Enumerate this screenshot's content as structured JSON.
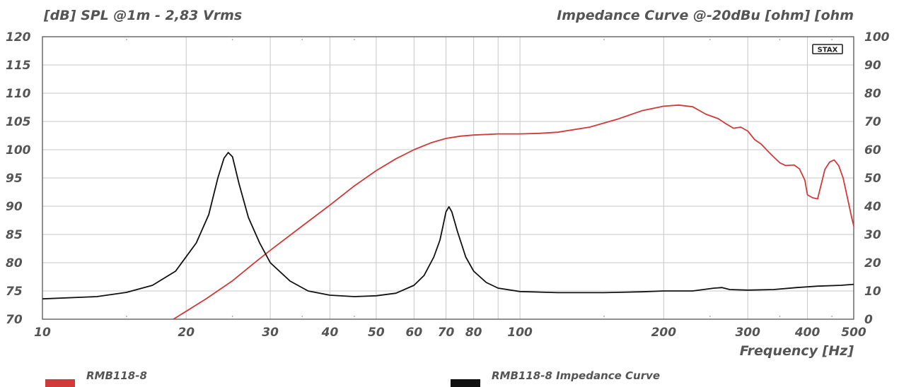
{
  "chart_data": {
    "type": "line",
    "title": "",
    "ylabel": "[dB]  SPL @1m - 2,83 Vrms",
    "y2label": "Impedance Curve @-20dBu [ohm]  [ohm",
    "xlabel": "Frequency  [Hz]",
    "x_scale": "log",
    "xlim": [
      10,
      500
    ],
    "ylim": [
      70,
      120
    ],
    "y2lim": [
      0,
      100
    ],
    "grid": true,
    "legend_position": "bottom",
    "x_ticks": [
      10,
      20,
      30,
      40,
      50,
      60,
      70,
      80,
      100,
      200,
      300,
      400,
      500
    ],
    "y_ticks": [
      70,
      75,
      80,
      85,
      90,
      95,
      100,
      105,
      110,
      115,
      120
    ],
    "y2_ticks": [
      0,
      10,
      20,
      30,
      40,
      50,
      60,
      70,
      80,
      90,
      100
    ],
    "logo_text": "STAX",
    "series": [
      {
        "name": "RMB118-8",
        "axis": "left",
        "color": "#d23a3a",
        "points": [
          [
            18.8,
            70
          ],
          [
            20,
            71.4
          ],
          [
            22,
            73.6
          ],
          [
            25,
            76.8
          ],
          [
            28,
            80.2
          ],
          [
            30,
            82.2
          ],
          [
            35,
            86.5
          ],
          [
            40,
            90.2
          ],
          [
            45,
            93.6
          ],
          [
            50,
            96.3
          ],
          [
            55,
            98.4
          ],
          [
            60,
            100
          ],
          [
            65,
            101.2
          ],
          [
            70,
            102
          ],
          [
            75,
            102.4
          ],
          [
            80,
            102.6
          ],
          [
            90,
            102.8
          ],
          [
            100,
            102.8
          ],
          [
            110,
            102.9
          ],
          [
            120,
            103.1
          ],
          [
            140,
            104
          ],
          [
            160,
            105.4
          ],
          [
            180,
            106.9
          ],
          [
            200,
            107.7
          ],
          [
            215,
            107.9
          ],
          [
            230,
            107.6
          ],
          [
            245,
            106.3
          ],
          [
            260,
            105.5
          ],
          [
            270,
            104.6
          ],
          [
            280,
            103.8
          ],
          [
            290,
            104
          ],
          [
            300,
            103.3
          ],
          [
            310,
            101.8
          ],
          [
            320,
            101
          ],
          [
            330,
            99.8
          ],
          [
            340,
            98.7
          ],
          [
            350,
            97.7
          ],
          [
            360,
            97.2
          ],
          [
            375,
            97.3
          ],
          [
            385,
            96.6
          ],
          [
            395,
            94.6
          ],
          [
            400,
            92
          ],
          [
            410,
            91.5
          ],
          [
            420,
            91.3
          ],
          [
            425,
            93
          ],
          [
            435,
            96.5
          ],
          [
            445,
            97.8
          ],
          [
            455,
            98.2
          ],
          [
            465,
            97.2
          ],
          [
            475,
            95
          ],
          [
            485,
            91.5
          ],
          [
            495,
            88
          ],
          [
            505,
            85
          ],
          [
            515,
            83
          ],
          [
            525,
            81
          ],
          [
            535,
            79
          ],
          [
            545,
            76
          ],
          [
            555,
            74.5
          ],
          [
            565,
            74.5
          ]
        ]
      },
      {
        "name": "RMB118-8 Impedance Curve",
        "axis": "right",
        "color": "#111111",
        "points": [
          [
            10,
            7.2
          ],
          [
            13,
            8
          ],
          [
            15,
            9.5
          ],
          [
            17,
            12
          ],
          [
            19,
            17
          ],
          [
            21,
            27
          ],
          [
            22.3,
            37
          ],
          [
            23.3,
            50
          ],
          [
            24,
            57
          ],
          [
            24.5,
            59
          ],
          [
            25,
            57.5
          ],
          [
            25.8,
            48
          ],
          [
            27,
            36
          ],
          [
            28.5,
            27
          ],
          [
            30,
            20
          ],
          [
            33,
            13.5
          ],
          [
            36,
            10
          ],
          [
            40,
            8.5
          ],
          [
            45,
            8
          ],
          [
            50,
            8.3
          ],
          [
            55,
            9.2
          ],
          [
            60,
            12
          ],
          [
            63,
            15.5
          ],
          [
            66,
            22
          ],
          [
            68,
            28
          ],
          [
            69,
            33
          ],
          [
            70,
            38
          ],
          [
            71,
            39.8
          ],
          [
            72,
            38
          ],
          [
            74,
            31
          ],
          [
            77,
            22
          ],
          [
            80,
            17
          ],
          [
            85,
            13
          ],
          [
            90,
            11
          ],
          [
            100,
            9.8
          ],
          [
            120,
            9.4
          ],
          [
            150,
            9.4
          ],
          [
            180,
            9.7
          ],
          [
            200,
            10
          ],
          [
            230,
            10
          ],
          [
            255,
            11
          ],
          [
            265,
            11.2
          ],
          [
            275,
            10.5
          ],
          [
            300,
            10.3
          ],
          [
            340,
            10.5
          ],
          [
            380,
            11.2
          ],
          [
            420,
            11.7
          ],
          [
            470,
            12
          ],
          [
            515,
            12.5
          ],
          [
            565,
            13
          ]
        ]
      }
    ]
  }
}
